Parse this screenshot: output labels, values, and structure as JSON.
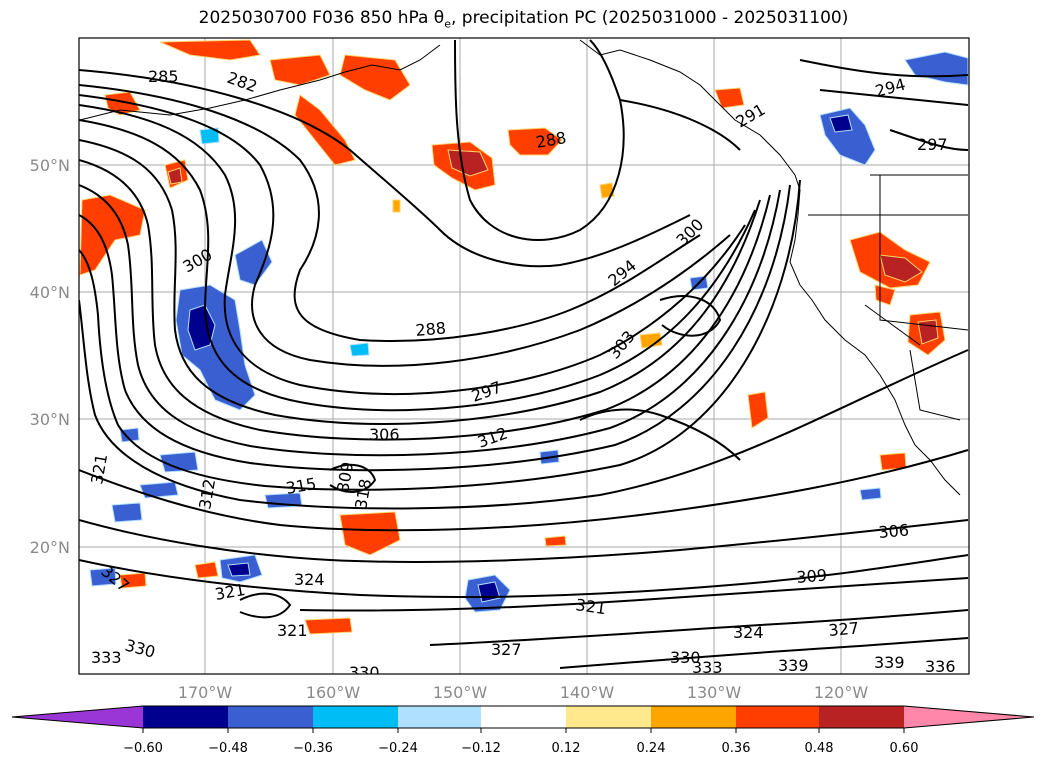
{
  "map": {
    "title_prefix": "2025030700 F036 850 hPa θ",
    "title_sub": "e",
    "title_suffix": ", precipitation PC (2025031000 - 2025031100)",
    "lat_labels": [
      "50°N",
      "40°N",
      "30°N",
      "20°N"
    ],
    "lon_labels": [
      "170°W",
      "160°W",
      "150°W",
      "140°W",
      "130°W",
      "120°W"
    ],
    "colorbar": {
      "extend": "both",
      "tick_labels": [
        "−0.60",
        "−0.48",
        "−0.36",
        "−0.24",
        "−0.12",
        "0.12",
        "0.24",
        "0.36",
        "0.48",
        "0.60"
      ],
      "colors": [
        "#9b36d6",
        "#00008f",
        "#3a5fd1",
        "#00bdf5",
        "#b0e0ff",
        "#ffffff",
        "#ffe98c",
        "#ffa500",
        "#ff3e00",
        "#b82222",
        "#ff88aa"
      ]
    },
    "contour_labels": [
      "285",
      "282",
      "288",
      "291",
      "294",
      "297",
      "300",
      "303",
      "306",
      "309",
      "312",
      "315",
      "318",
      "321",
      "324",
      "327",
      "330",
      "333",
      "336",
      "339"
    ]
  }
}
